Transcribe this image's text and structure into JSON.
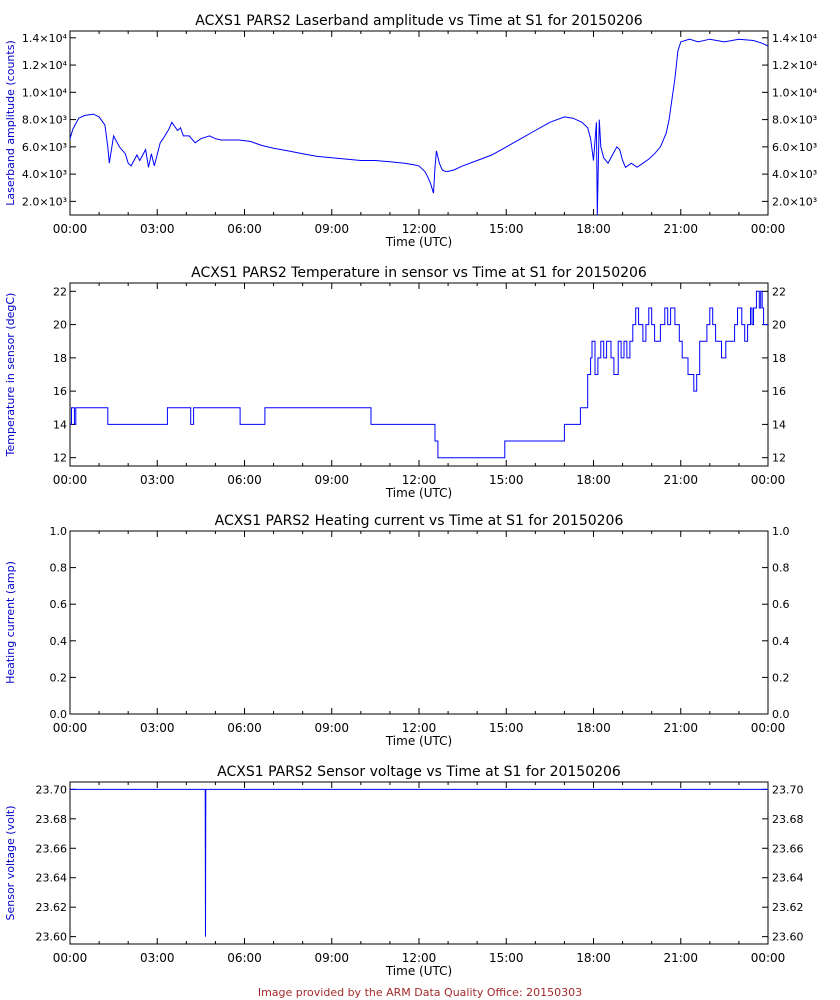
{
  "page": {
    "footer": "Image provided by the ARM Data Quality Office: 20150303"
  },
  "colors": {
    "data_line": "#0000ff",
    "frame": "#000000",
    "ylabel": "#0000cc",
    "footer": "#a52a2a"
  },
  "chart_data": [
    {
      "type": "line",
      "title": "ACXS1 PARS2 Laserband amplitude vs Time at S1 for 20150206",
      "xlabel": "Time (UTC)",
      "ylabel": "Laserband amplitude (counts)",
      "xlim": [
        0,
        24
      ],
      "ylim": [
        1000,
        14500
      ],
      "x_ticks": [
        {
          "v": 0,
          "label": "00:00"
        },
        {
          "v": 3,
          "label": "03:00"
        },
        {
          "v": 6,
          "label": "06:00"
        },
        {
          "v": 9,
          "label": "09:00"
        },
        {
          "v": 12,
          "label": "12:00"
        },
        {
          "v": 15,
          "label": "15:00"
        },
        {
          "v": 18,
          "label": "18:00"
        },
        {
          "v": 21,
          "label": "21:00"
        },
        {
          "v": 24,
          "label": "00:00"
        }
      ],
      "y_ticks": [
        {
          "v": 2000,
          "label": "2.0×10³"
        },
        {
          "v": 4000,
          "label": "4.0×10³"
        },
        {
          "v": 6000,
          "label": "6.0×10³"
        },
        {
          "v": 8000,
          "label": "8.0×10³"
        },
        {
          "v": 10000,
          "label": "1.0×10⁴"
        },
        {
          "v": 12000,
          "label": "1.2×10⁴"
        },
        {
          "v": 14000,
          "label": "1.4×10⁴"
        }
      ],
      "series": [
        {
          "x": [
            0,
            0.1,
            0.3,
            0.5,
            0.8,
            1.0,
            1.2,
            1.3,
            1.35,
            1.5,
            1.7,
            1.9,
            2.0,
            2.1,
            2.3,
            2.4,
            2.6,
            2.7,
            2.8,
            2.9,
            3.1,
            3.2,
            3.4,
            3.5,
            3.7,
            3.8,
            3.9,
            4.1,
            4.3,
            4.5,
            4.8,
            5.0,
            5.2,
            5.5,
            5.8,
            6.2,
            6.6,
            7.0,
            7.5,
            8.0,
            8.5,
            9.0,
            9.5,
            10.0,
            10.5,
            11.0,
            11.5,
            11.8,
            12.0,
            12.2,
            12.3,
            12.4,
            12.5,
            12.55,
            12.6,
            12.7,
            12.8,
            12.9,
            13.0,
            13.2,
            13.5,
            14.0,
            14.5,
            15.0,
            15.5,
            16.0,
            16.5,
            17.0,
            17.3,
            17.6,
            17.8,
            17.9,
            18.0,
            18.1,
            18.13,
            18.17,
            18.2,
            18.25,
            18.35,
            18.5,
            18.65,
            18.8,
            18.9,
            19.0,
            19.1,
            19.3,
            19.5,
            19.7,
            19.9,
            20.1,
            20.3,
            20.5,
            20.6,
            20.7,
            20.8,
            20.85,
            20.9,
            21.0,
            21.3,
            21.6,
            22.0,
            22.5,
            23.0,
            23.5,
            23.8,
            24.0
          ],
          "y": [
            6600,
            7300,
            8100,
            8300,
            8400,
            8200,
            7600,
            6000,
            4800,
            6800,
            6000,
            5500,
            4800,
            4600,
            5400,
            5000,
            5800,
            4500,
            5500,
            4600,
            6300,
            6600,
            7300,
            7800,
            7200,
            7400,
            6800,
            6800,
            6300,
            6600,
            6800,
            6600,
            6500,
            6500,
            6500,
            6400,
            6100,
            5900,
            5700,
            5500,
            5300,
            5200,
            5100,
            5000,
            5000,
            4900,
            4800,
            4700,
            4600,
            4200,
            3800,
            3300,
            2600,
            4500,
            5700,
            4800,
            4300,
            4200,
            4200,
            4300,
            4600,
            5000,
            5400,
            6000,
            6600,
            7200,
            7800,
            8200,
            8100,
            7800,
            7400,
            6600,
            5000,
            7800,
            1000,
            5000,
            8000,
            6000,
            5200,
            4800,
            5400,
            6000,
            5800,
            5000,
            4500,
            4800,
            4500,
            4800,
            5100,
            5500,
            6000,
            7000,
            8000,
            9500,
            11000,
            12000,
            13000,
            13700,
            13900,
            13700,
            13900,
            13700,
            13900,
            13800,
            13600,
            13400
          ]
        }
      ]
    },
    {
      "type": "line",
      "title": "ACXS1 PARS2 Temperature in sensor vs Time at S1 for 20150206",
      "xlabel": "Time (UTC)",
      "ylabel": "Temperature in sensor (degC)",
      "xlim": [
        0,
        24
      ],
      "ylim": [
        11.5,
        22.5
      ],
      "x_ticks": [
        {
          "v": 0,
          "label": "00:00"
        },
        {
          "v": 3,
          "label": "03:00"
        },
        {
          "v": 6,
          "label": "06:00"
        },
        {
          "v": 9,
          "label": "09:00"
        },
        {
          "v": 12,
          "label": "12:00"
        },
        {
          "v": 15,
          "label": "15:00"
        },
        {
          "v": 18,
          "label": "18:00"
        },
        {
          "v": 21,
          "label": "21:00"
        },
        {
          "v": 24,
          "label": "00:00"
        }
      ],
      "y_ticks": [
        {
          "v": 12,
          "label": "12"
        },
        {
          "v": 14,
          "label": "14"
        },
        {
          "v": 16,
          "label": "16"
        },
        {
          "v": 18,
          "label": "18"
        },
        {
          "v": 20,
          "label": "20"
        },
        {
          "v": 22,
          "label": "22"
        }
      ],
      "series": [
        {
          "step": true,
          "x": [
            0,
            0.05,
            0.15,
            0.2,
            0.25,
            1.3,
            3.35,
            4.15,
            4.25,
            5.85,
            6.7,
            10.35,
            12.55,
            12.65,
            14.95,
            17.0,
            17.55,
            17.8,
            17.9,
            17.95,
            18.05,
            18.15,
            18.25,
            18.35,
            18.45,
            18.6,
            18.7,
            18.85,
            18.95,
            19.05,
            19.15,
            19.25,
            19.35,
            19.45,
            19.55,
            19.7,
            19.8,
            19.9,
            20.0,
            20.1,
            20.3,
            20.45,
            20.55,
            20.65,
            20.8,
            20.95,
            21.05,
            21.25,
            21.45,
            21.55,
            21.65,
            21.9,
            22.0,
            22.1,
            22.2,
            22.4,
            22.55,
            22.85,
            22.95,
            23.1,
            23.2,
            23.3,
            23.4,
            23.45,
            23.5,
            23.6,
            23.7,
            23.75,
            23.8,
            23.85,
            23.9,
            24.0
          ],
          "y": [
            14,
            15,
            14,
            15,
            15,
            14,
            15,
            14,
            15,
            14,
            15,
            14,
            13,
            12,
            13,
            14,
            15,
            17,
            18,
            19,
            17,
            18,
            19,
            18,
            19,
            18,
            17,
            19,
            18,
            19,
            18,
            19,
            20,
            21,
            20,
            19,
            20,
            21,
            20,
            19,
            20,
            21,
            20,
            21,
            20,
            19,
            18,
            17,
            16,
            17,
            19,
            20,
            21,
            20,
            19,
            18,
            19,
            20,
            21,
            20,
            19,
            20,
            21,
            20,
            21,
            22,
            21,
            22,
            21,
            20,
            20,
            20
          ]
        }
      ]
    },
    {
      "type": "line",
      "title": "ACXS1 PARS2 Heating current vs Time at S1 for 20150206",
      "xlabel": "Time (UTC)",
      "ylabel": "Heating current (amp)",
      "xlim": [
        0,
        24
      ],
      "ylim": [
        0,
        1
      ],
      "x_ticks": [
        {
          "v": 0,
          "label": "00:00"
        },
        {
          "v": 3,
          "label": "03:00"
        },
        {
          "v": 6,
          "label": "06:00"
        },
        {
          "v": 9,
          "label": "09:00"
        },
        {
          "v": 12,
          "label": "12:00"
        },
        {
          "v": 15,
          "label": "15:00"
        },
        {
          "v": 18,
          "label": "18:00"
        },
        {
          "v": 21,
          "label": "21:00"
        },
        {
          "v": 24,
          "label": "00:00"
        }
      ],
      "y_ticks": [
        {
          "v": 0,
          "label": "0.0"
        },
        {
          "v": 0.2,
          "label": "0.2"
        },
        {
          "v": 0.4,
          "label": "0.4"
        },
        {
          "v": 0.6,
          "label": "0.6"
        },
        {
          "v": 0.8,
          "label": "0.8"
        },
        {
          "v": 1.0,
          "label": "1.0"
        }
      ],
      "series": []
    },
    {
      "type": "line",
      "title": "ACXS1 PARS2 Sensor voltage vs Time at S1 for 20150206",
      "xlabel": "Time (UTC)",
      "ylabel": "Sensor voltage (volt)",
      "xlim": [
        0,
        24
      ],
      "ylim": [
        23.595,
        23.705
      ],
      "x_ticks": [
        {
          "v": 0,
          "label": "00:00"
        },
        {
          "v": 3,
          "label": "03:00"
        },
        {
          "v": 6,
          "label": "06:00"
        },
        {
          "v": 9,
          "label": "09:00"
        },
        {
          "v": 12,
          "label": "12:00"
        },
        {
          "v": 15,
          "label": "15:00"
        },
        {
          "v": 18,
          "label": "18:00"
        },
        {
          "v": 21,
          "label": "21:00"
        },
        {
          "v": 24,
          "label": "00:00"
        }
      ],
      "y_ticks": [
        {
          "v": 23.6,
          "label": "23.60"
        },
        {
          "v": 23.62,
          "label": "23.62"
        },
        {
          "v": 23.64,
          "label": "23.64"
        },
        {
          "v": 23.66,
          "label": "23.66"
        },
        {
          "v": 23.68,
          "label": "23.68"
        },
        {
          "v": 23.7,
          "label": "23.70"
        }
      ],
      "series": [
        {
          "x": [
            0,
            4.65,
            4.66,
            4.67,
            24
          ],
          "y": [
            23.7,
            23.7,
            23.6,
            23.7,
            23.7
          ]
        }
      ]
    }
  ]
}
